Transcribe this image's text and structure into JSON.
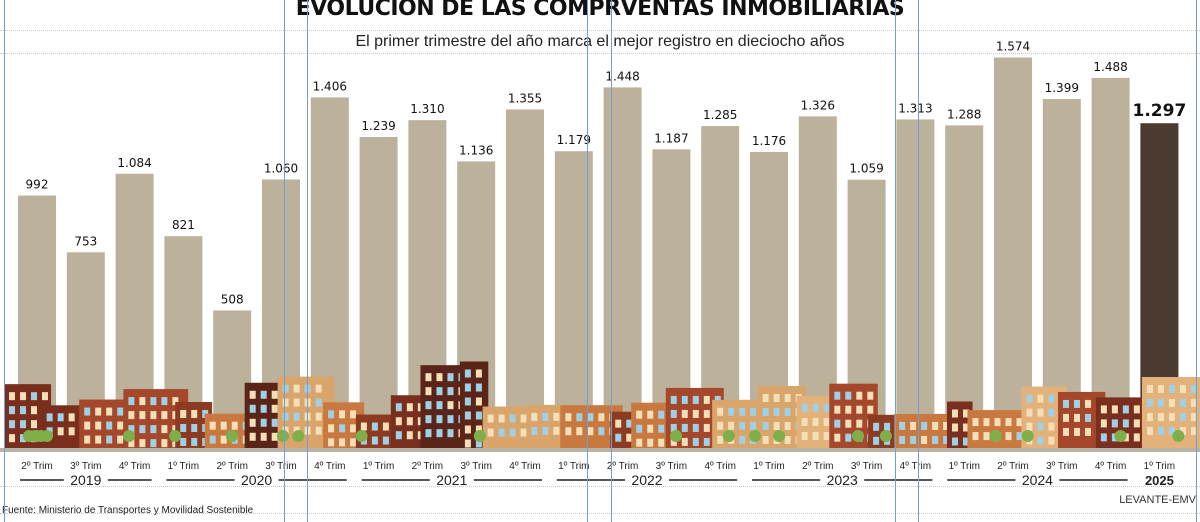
{
  "chart_data": {
    "type": "bar",
    "title": "EVOLUCION DE LAS COMPRVENTAS INMOBILIARIAS",
    "subtitle": "El primer trimestre del año marca el mejor registro en dieciocho años",
    "categories": [
      "2º Trim",
      "3º Trim",
      "4º Trim",
      "1º Trim",
      "2º Trim",
      "3º Trim",
      "4º Trim",
      "1º Trim",
      "2º Trim",
      "3º Trim",
      "4º Trim",
      "1º Trim",
      "2º Trim",
      "3º Trim",
      "4º Trim",
      "1º Trim",
      "2º Trim",
      "3º Trim",
      "4º Trim",
      "1º Trim",
      "2º Trim",
      "3º Trim",
      "4º Trim",
      "1º Trim"
    ],
    "values": [
      992,
      753,
      1084,
      821,
      508,
      1060,
      1406,
      1239,
      1310,
      1136,
      1355,
      1179,
      1448,
      1187,
      1285,
      1176,
      1326,
      1059,
      1313,
      1288,
      1574,
      1399,
      1488,
      1297
    ],
    "value_labels": [
      "992",
      "753",
      "1.084",
      "821",
      "508",
      "1.060",
      "1.406",
      "1.239",
      "1.310",
      "1.136",
      "1.355",
      "1.179",
      "1.448",
      "1.187",
      "1.285",
      "1.176",
      "1.326",
      "1.059",
      "1.313",
      "1.288",
      "1.574",
      "1.399",
      "1.488",
      "1.297"
    ],
    "years": [
      {
        "label": "2019",
        "start": 0,
        "end": 2
      },
      {
        "label": "2020",
        "start": 3,
        "end": 6
      },
      {
        "label": "2021",
        "start": 7,
        "end": 10
      },
      {
        "label": "2022",
        "start": 11,
        "end": 14
      },
      {
        "label": "2023",
        "start": 15,
        "end": 18
      },
      {
        "label": "2024",
        "start": 19,
        "end": 22
      },
      {
        "label": "2025",
        "start": 23,
        "end": 23
      }
    ],
    "highlight_index": 23,
    "colors": {
      "bar": "#bcb29c",
      "highlight": "#4b3a2f"
    },
    "ylim": [
      0,
      1600
    ],
    "grid": false,
    "source": "Fuente: Ministerio de Transportes y Movilidad Sostenible",
    "credit": "LEVANTE-EMV"
  }
}
